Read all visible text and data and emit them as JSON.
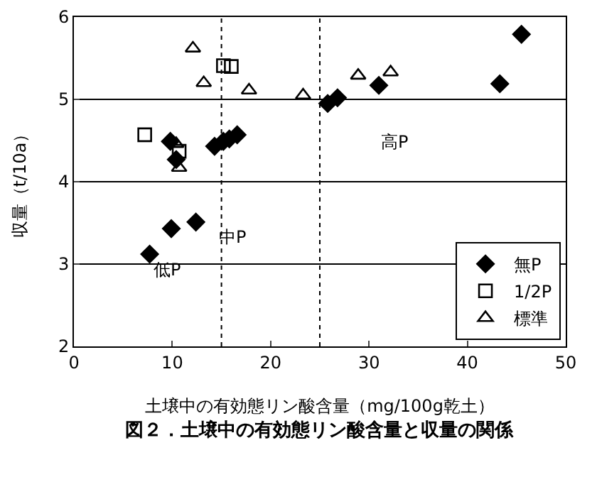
{
  "chart_data": {
    "type": "scatter",
    "title": "図２．土壌中の有効態リン酸含量と収量の関係",
    "xlabel": "土壌中の有効態リン酸含量（mg/100g乾土）",
    "ylabel": "収量（t/10a）",
    "series": [
      {
        "name": "無P",
        "color": "#000000",
        "marker": "diamond",
        "x": [
          7.7,
          9.9,
          12.4,
          9.8,
          10.4,
          14.3,
          15.2,
          15.8,
          16.6,
          25.8,
          26.8,
          31.0,
          43.3,
          45.5
        ],
        "values": [
          3.12,
          3.43,
          3.51,
          4.49,
          4.27,
          4.43,
          4.49,
          4.52,
          4.57,
          4.95,
          5.02,
          5.17,
          5.19,
          5.79
        ]
      },
      {
        "name": "1/2P",
        "color": "#000000",
        "marker": "square",
        "x": [
          7.2,
          10.7,
          15.2,
          16.0
        ],
        "values": [
          4.57,
          4.37,
          5.41,
          5.4
        ]
      },
      {
        "name": "標準",
        "color": "#000000",
        "marker": "triangle",
        "x": [
          12.1,
          13.2,
          17.8,
          10.4,
          10.7,
          23.3,
          28.9,
          32.2
        ],
        "values": [
          5.62,
          5.2,
          5.11,
          4.46,
          4.17,
          5.05,
          5.29,
          5.33
        ]
      }
    ],
    "xlim": [
      0,
      50
    ],
    "xticks": [
      0,
      10,
      20,
      30,
      40,
      50
    ],
    "ylim": [
      2,
      6
    ],
    "yticks": [
      2,
      3,
      4,
      5,
      6
    ],
    "grid": "y",
    "legend": "bottom right",
    "ref_lines": [
      {
        "axis": "x",
        "value": 15,
        "line_style": "dotted",
        "color": "#000000"
      },
      {
        "axis": "x",
        "value": 25,
        "line_style": "dotted",
        "color": "#000000"
      }
    ],
    "annotations": [
      "低P",
      "中P",
      "高P"
    ]
  }
}
